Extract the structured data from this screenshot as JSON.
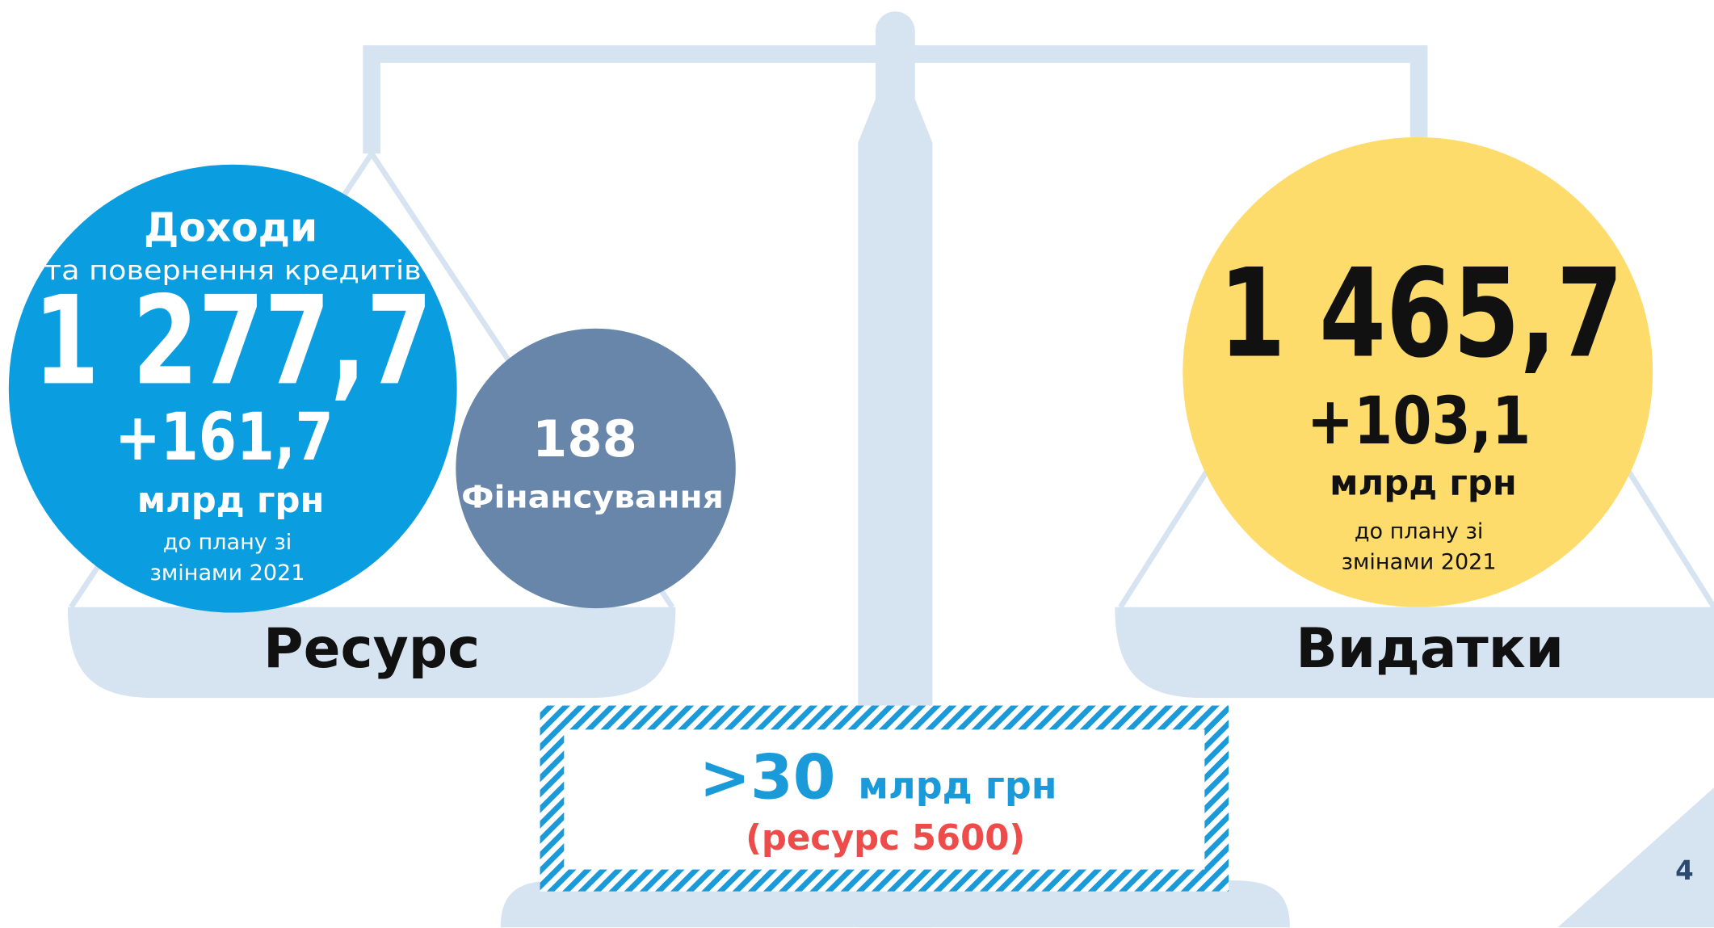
{
  "resource": {
    "income": {
      "title": "Доходи",
      "subtitle": "та повернення кредитів",
      "amount": "1 277,7",
      "change": "+161,7",
      "unit": "млрд грн",
      "note": [
        "до плану зі",
        "змінами 2021"
      ]
    },
    "financing": {
      "amount": "188",
      "label": "Фінансування"
    },
    "label": "Ресурс"
  },
  "expenses": {
    "amount": "1 465,7",
    "change": "+103,1",
    "unit": "млрд грн",
    "note": [
      "до плану зі",
      "змінами 2021"
    ],
    "label": "Видатки"
  },
  "gap": {
    "amount": ">30",
    "unit": "млрд грн",
    "note": "(ресурс 5600)"
  },
  "page_number": "4"
}
